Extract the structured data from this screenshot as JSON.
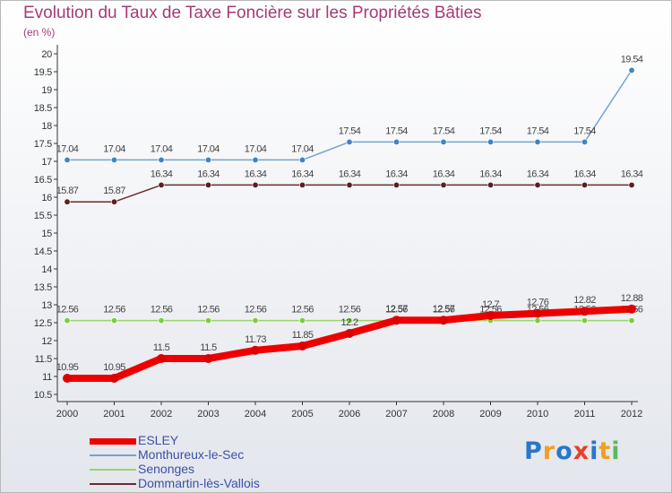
{
  "header": {
    "title": "Evolution du Taux de Taxe Foncière sur les Propriétés Bâties",
    "unit": "(en %)"
  },
  "logo": {
    "text": "Proxiti",
    "colors": [
      "#2a76c9",
      "#f0a020",
      "#2a76c9",
      "#e8402a",
      "#2a76c9",
      "#f0a020",
      "#5cb85c"
    ]
  },
  "chart_data": {
    "type": "line",
    "title": "Evolution du Taux de Taxe Foncière sur les Propriétés Bâties",
    "ylabel": "(en %)",
    "xlabel": "",
    "ylim": [
      10.5,
      20
    ],
    "ytick_step": 0.5,
    "grid": false,
    "legend_position": "bottom-left",
    "categories": [
      "2000",
      "2001",
      "2002",
      "2003",
      "2004",
      "2005",
      "2006",
      "2007",
      "2008",
      "2009",
      "2010",
      "2011",
      "2012"
    ],
    "series": [
      {
        "name": "Monthureux-le-Sec",
        "color": "#74a3cf",
        "marker": "#3f83c4",
        "values": [
          17.04,
          17.04,
          17.04,
          17.04,
          17.04,
          17.04,
          17.54,
          17.54,
          17.54,
          17.54,
          17.54,
          17.54,
          19.54
        ],
        "labels": [
          "17.04",
          "17.04",
          "17.04",
          "17.04",
          "17.04",
          "17.04",
          "17.54",
          "17.54",
          "17.54",
          "17.54",
          "17.54",
          "17.54",
          "19.54"
        ]
      },
      {
        "name": "Dommartin-lès-Vallois",
        "color": "#6e2a2a",
        "marker": "#5a1f1f",
        "values": [
          15.87,
          15.87,
          16.34,
          16.34,
          16.34,
          16.34,
          16.34,
          16.34,
          16.34,
          16.34,
          16.34,
          16.34,
          16.34
        ],
        "labels": [
          "15.87",
          "15.87",
          "16.34",
          "16.34",
          "16.34",
          "16.34",
          "16.34",
          "16.34",
          "16.34",
          "16.34",
          "16.34",
          "16.34",
          "16.34"
        ]
      },
      {
        "name": "Senonges",
        "color": "#9ad46a",
        "marker": "#7ccc3c",
        "values": [
          12.56,
          12.56,
          12.56,
          12.56,
          12.56,
          12.56,
          12.56,
          12.56,
          12.56,
          12.56,
          12.56,
          12.56,
          12.56
        ],
        "labels": [
          "12.56",
          "12.56",
          "12.56",
          "12.56",
          "12.56",
          "12.56",
          "12.56",
          "12.56",
          "12.56",
          "12.56",
          "12.56",
          "12.56",
          "12.56"
        ]
      },
      {
        "name": "ESLEY",
        "color": "#ee0000",
        "marker": "#dd0000",
        "values": [
          10.95,
          10.95,
          11.5,
          11.5,
          11.73,
          11.85,
          12.2,
          12.57,
          12.57,
          12.7,
          12.76,
          12.82,
          12.88
        ],
        "labels": [
          "10.95",
          "10.95",
          "11.5",
          "11.5",
          "11.73",
          "11.85",
          "12.2",
          "12.57",
          "12.57",
          "12.7",
          "12.76",
          "12.82",
          "12.88"
        ]
      }
    ],
    "legend": [
      "ESLEY",
      "Monthureux-le-Sec",
      "Senonges",
      "Dommartin-lès-Vallois"
    ]
  }
}
